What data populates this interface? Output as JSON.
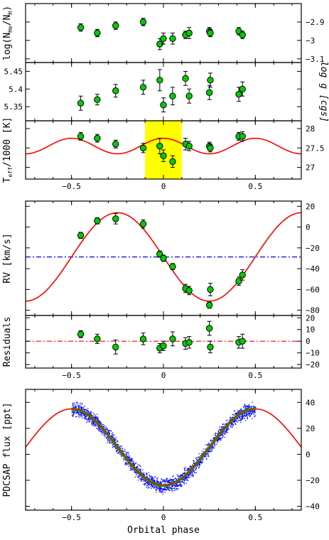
{
  "figure": {
    "xlabel": "Orbital phase",
    "xticks": [
      -0.5,
      0,
      0.5
    ],
    "xrange": [
      -0.75,
      0.75
    ]
  },
  "colors": {
    "model": "#ff0000",
    "points": "#00cc00",
    "mean_rv": "#0000ff",
    "zero_line": "#ff0000",
    "highlight": "#ffff00",
    "tess_points": "#0000ff",
    "binned": "#00b000"
  },
  "phase_points": [
    -0.45,
    -0.36,
    -0.26,
    -0.11,
    -0.02,
    0.0,
    0.05,
    0.12,
    0.14,
    0.25,
    0.255,
    0.41,
    0.43
  ],
  "chart_data": [
    {
      "id": "abundance",
      "type": "scatter",
      "ylabel": "log(N_He/N_H)",
      "ylim": [
        -3.12,
        -2.8
      ],
      "yticks": [
        -2.9,
        -3,
        -3.1
      ],
      "ytick_side": "right",
      "values": [
        -2.93,
        -2.96,
        -2.92,
        -2.9,
        -3.02,
        -2.99,
        -2.99,
        -2.97,
        -2.96,
        -2.95,
        -2.96,
        -2.95,
        -2.97
      ],
      "errors": [
        0.02,
        0.02,
        0.02,
        0.02,
        0.03,
        0.03,
        0.03,
        0.02,
        0.03,
        0.02,
        0.02,
        0.02,
        0.02
      ]
    },
    {
      "id": "gravity",
      "type": "scatter",
      "ylabel": "log g [cgs]",
      "ylim": [
        5.31,
        5.475
      ],
      "yticks": [
        5.45,
        5.4,
        5.35
      ],
      "ytick_side": "left",
      "values": [
        5.36,
        5.37,
        5.395,
        5.405,
        5.425,
        5.355,
        5.38,
        5.43,
        5.38,
        5.39,
        5.425,
        5.385,
        5.4
      ],
      "errors": [
        0.02,
        0.015,
        0.018,
        0.02,
        0.03,
        0.02,
        0.025,
        0.02,
        0.02,
        0.02,
        0.02,
        0.02,
        0.02
      ]
    },
    {
      "id": "temperature",
      "type": "scatter",
      "ylabel": "T_eff/1000 [K]",
      "ylim": [
        26.7,
        28.2
      ],
      "yticks": [
        28,
        27.5,
        27
      ],
      "ytick_side": "right",
      "highlight_x": [
        -0.1,
        0.1
      ],
      "model": {
        "mean": 27.55,
        "amplitude": 0.2
      },
      "values": [
        27.8,
        27.75,
        27.6,
        27.5,
        27.55,
        27.3,
        27.15,
        27.6,
        27.55,
        27.55,
        27.5,
        27.8,
        27.8
      ],
      "errors": [
        0.1,
        0.1,
        0.1,
        0.12,
        0.2,
        0.15,
        0.15,
        0.15,
        0.12,
        0.1,
        0.1,
        0.1,
        0.12
      ]
    },
    {
      "id": "radial_velocity",
      "type": "scatter",
      "ylabel": "RV [km/s]",
      "ylim": [
        -85,
        25
      ],
      "yticks": [
        20,
        0,
        -20,
        -40,
        -60,
        -80
      ],
      "ytick_side": "right",
      "model": {
        "offset": -28.7,
        "amplitude": 42.5
      },
      "mean_line": -28.7,
      "values": [
        -8,
        6,
        8,
        3,
        -26,
        -30,
        -38,
        -59,
        -61,
        -75,
        -60,
        -52,
        -46
      ],
      "errors": [
        3,
        3,
        5,
        4,
        3,
        3,
        3,
        4,
        4,
        3,
        6,
        4,
        5
      ]
    },
    {
      "id": "residuals",
      "type": "scatter",
      "ylabel": "Residuals",
      "ylim": [
        -23,
        22
      ],
      "yticks": [
        20,
        10,
        0,
        -10,
        -20
      ],
      "ytick_side": "right",
      "zero_line": 0,
      "values": [
        6,
        2,
        -5,
        2,
        -6,
        -4,
        2,
        -2,
        -1,
        11,
        -5,
        -1,
        0
      ],
      "errors": [
        3,
        4,
        6,
        5,
        4,
        4,
        6,
        5,
        5,
        6,
        5,
        5,
        6
      ]
    },
    {
      "id": "light_curve",
      "type": "scatter",
      "ylabel": "PDCSAP flux [ppt]",
      "ylim": [
        -43,
        50
      ],
      "yticks": [
        40,
        20,
        0,
        -20,
        -40
      ],
      "ytick_side": "right",
      "model": {
        "amplitude": 29.5,
        "mean": 5.5,
        "harmonic": 1.5
      },
      "data_x_range": [
        -0.5,
        0.5
      ],
      "scatter_width": 5
    }
  ]
}
